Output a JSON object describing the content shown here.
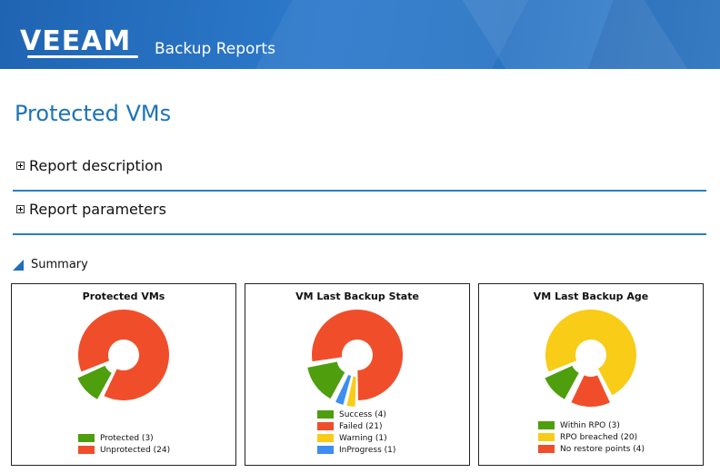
{
  "header": {
    "logo_text": "VEEAM",
    "app_title": "Backup Reports"
  },
  "page": {
    "title": "Protected VMs"
  },
  "sections": [
    {
      "label": "Report description"
    },
    {
      "label": "Report parameters"
    }
  ],
  "summary": {
    "label": "Summary"
  },
  "panels": [
    {
      "title": "Protected VMs",
      "chart_data": {
        "type": "pie",
        "title": "Protected VMs",
        "slices": [
          {
            "label": "Protected (3)",
            "value": 3,
            "color": "#4e9e0e"
          },
          {
            "label": "Unprotected (24)",
            "value": 24,
            "color": "#f04e2a"
          }
        ]
      }
    },
    {
      "title": "VM Last Backup State",
      "chart_data": {
        "type": "pie",
        "title": "VM Last Backup State",
        "slices": [
          {
            "label": "Success (4)",
            "value": 4,
            "color": "#4e9e0e"
          },
          {
            "label": "Failed (21)",
            "value": 21,
            "color": "#f04e2a"
          },
          {
            "label": "Warning (1)",
            "value": 1,
            "color": "#f8cc17"
          },
          {
            "label": "InProgress (1)",
            "value": 1,
            "color": "#3e8ef1"
          }
        ]
      }
    },
    {
      "title": "VM Last Backup Age",
      "chart_data": {
        "type": "pie",
        "title": "VM Last Backup Age",
        "slices": [
          {
            "label": "Within RPO (3)",
            "value": 3,
            "color": "#4e9e0e"
          },
          {
            "label": "RPO breached (20)",
            "value": 20,
            "color": "#f8cc17"
          },
          {
            "label": "No restore points (4)",
            "value": 4,
            "color": "#f04e2a"
          }
        ]
      }
    }
  ]
}
